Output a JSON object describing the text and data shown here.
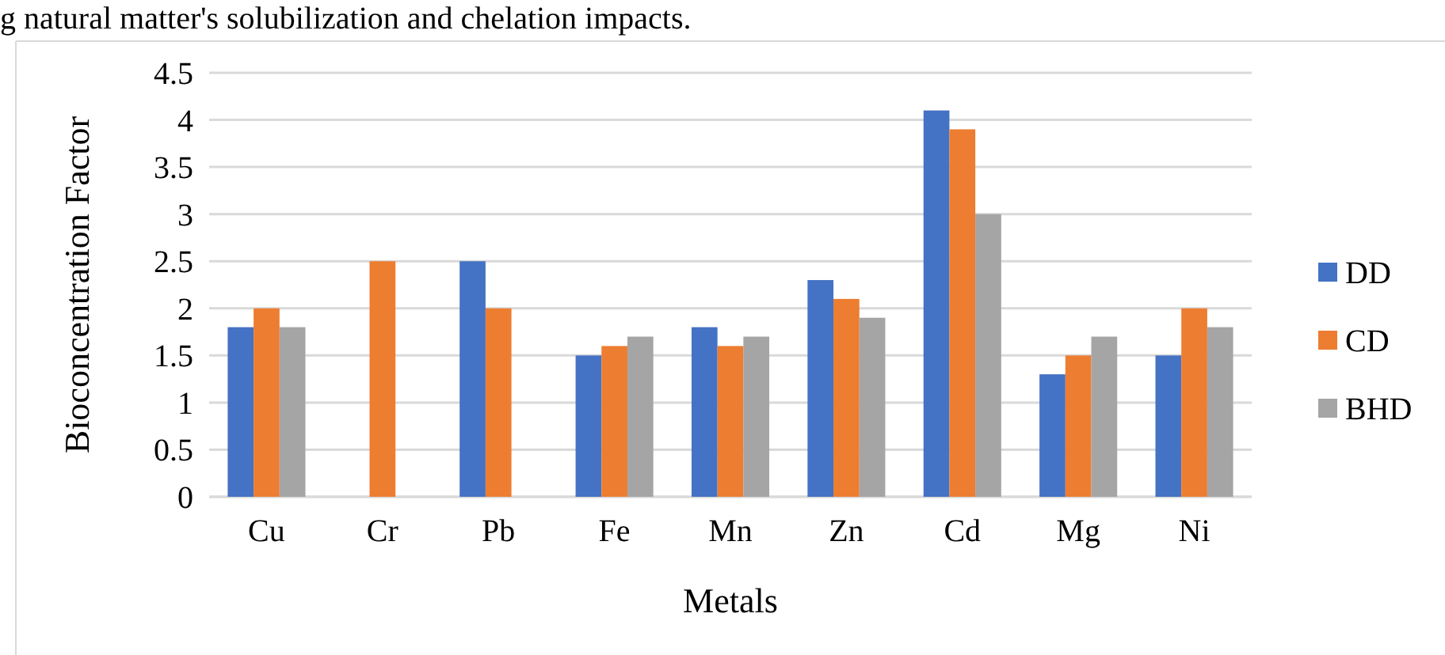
{
  "chart_data": {
    "type": "bar",
    "xlabel": "Metals",
    "ylabel": "Bioconcentration Factor",
    "annotations": [
      "g natural matter's solubilization and chelation impacts."
    ],
    "categories": [
      "Cu",
      "Cr",
      "Pb",
      "Fe",
      "Mn",
      "Zn",
      "Cd",
      "Mg",
      "Ni"
    ],
    "series": [
      {
        "name": "DD",
        "color": "#4472c4",
        "values": [
          1.8,
          null,
          2.5,
          1.5,
          1.8,
          2.3,
          4.1,
          1.3,
          1.5
        ]
      },
      {
        "name": "CD",
        "color": "#ed7d31",
        "values": [
          2.0,
          2.5,
          2.0,
          1.6,
          1.6,
          2.1,
          3.9,
          1.5,
          2.0
        ]
      },
      {
        "name": "BHD",
        "color": "#a5a5a5",
        "values": [
          1.8,
          null,
          null,
          1.7,
          1.7,
          1.9,
          3.0,
          1.7,
          1.8
        ]
      }
    ],
    "ylim": [
      0,
      4.5
    ],
    "yticks": [
      0,
      0.5,
      1,
      1.5,
      2,
      2.5,
      3,
      3.5,
      4,
      4.5
    ],
    "grid": "y",
    "legend": "right"
  }
}
